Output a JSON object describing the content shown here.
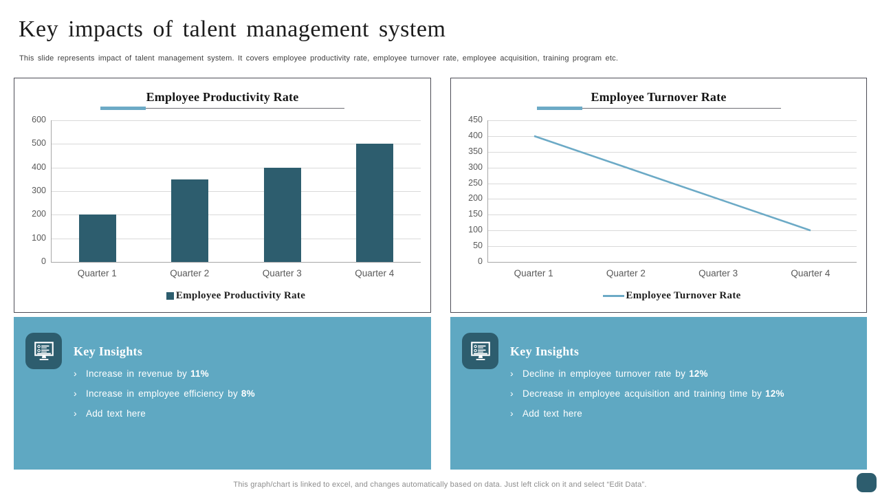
{
  "slide": {
    "title": "Key impacts of talent management system",
    "subtitle": "This slide represents impact of talent  management  system. It  covers employee productivity rate, employee turnover rate, employee  acquisition, training program etc.",
    "footer": "This graph/chart is linked to excel,  and changes automatically based on data. Just left click on it and select “Edit Data”."
  },
  "ui": {
    "bullet": "›"
  },
  "colors": {
    "dark_teal": "#2d5d6e",
    "panel_blue": "#5fa8c2",
    "accent_blue": "#6caac6",
    "gridline": "#d9d9d9",
    "axis": "#a6a6a6"
  },
  "chart_data": [
    {
      "type": "bar",
      "title": "Employee Productivity Rate",
      "categories": [
        "Quarter 1",
        "Quarter 2",
        "Quarter 3",
        "Quarter 4"
      ],
      "values": [
        200,
        350,
        400,
        500
      ],
      "ylim": [
        0,
        600
      ],
      "yticks": [
        600,
        500,
        400,
        300,
        200,
        100,
        0
      ],
      "grid": true,
      "legend": "Employee Productivity Rate",
      "legend_position": "bottom",
      "bar_color": "#2d5d6e"
    },
    {
      "type": "line",
      "title": "Employee Turnover Rate",
      "categories": [
        "Quarter 1",
        "Quarter 2",
        "Quarter 3",
        "Quarter 4"
      ],
      "values": [
        400,
        300,
        200,
        100
      ],
      "ylim": [
        0,
        450
      ],
      "yticks": [
        450,
        400,
        350,
        300,
        250,
        200,
        150,
        100,
        50,
        0
      ],
      "grid": true,
      "legend": "Employee Turnover Rate",
      "legend_position": "bottom",
      "line_color": "#6caac6"
    }
  ],
  "insights_left": {
    "heading": "Key Insights",
    "items": [
      {
        "text": "Increase  in revenue  by",
        "bold": "11%"
      },
      {
        "text": "Increase  in employee  efficiency by",
        "bold": "8%"
      },
      {
        "text": "Add text  here",
        "bold": ""
      }
    ]
  },
  "insights_right": {
    "heading": "Key Insights",
    "items": [
      {
        "text": "Decline in employee  turnover  rate by",
        "bold": "12%"
      },
      {
        "text": "Decrease in employee  acquisition and training  time by",
        "bold": "12%"
      },
      {
        "text": "Add text  here",
        "bold": ""
      }
    ]
  }
}
